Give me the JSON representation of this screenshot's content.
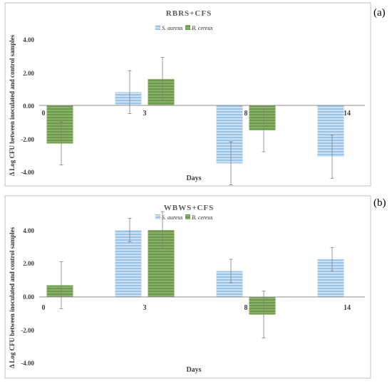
{
  "colors": {
    "s_aureus": "#9dc3e6",
    "s_aureus_stripe": "#ffffff",
    "b_cereus": "#6e9a4c",
    "b_cereus_stripe": "#a9c48f",
    "error_bar": "#7f7f7f",
    "axis": "#8c8c8c",
    "frame": "#bfbfbf"
  },
  "chart_data": [
    {
      "panel_label": "(a)",
      "type": "bar",
      "title": "RBRS+CFS",
      "xlabel": "Days",
      "ylabel": "Δ Log CFU between inoculated and control samples",
      "categories": [
        "0",
        "3",
        "8",
        "14"
      ],
      "y_ticks": [
        "4.00",
        "2.00",
        "0.00",
        "-2.00",
        "-4.00"
      ],
      "ylim": [
        -4,
        4
      ],
      "legend": "top",
      "grid": false,
      "series": [
        {
          "name": "S. aureus",
          "values": [
            null,
            0.8,
            -3.5,
            -3.1
          ],
          "errors": [
            null,
            1.3,
            1.3,
            1.3
          ]
        },
        {
          "name": "B. cereus",
          "values": [
            -2.3,
            1.6,
            -1.5,
            null
          ],
          "errors": [
            1.3,
            1.3,
            1.3,
            null
          ]
        }
      ]
    },
    {
      "panel_label": "(b)",
      "type": "bar",
      "title": "WBWS+CFS",
      "xlabel": "Days",
      "ylabel": "Δ Log CFU between inoculated and control samples",
      "categories": [
        "0",
        "3",
        "8",
        "14"
      ],
      "y_ticks": [
        "4.00",
        "2.00",
        "0.00",
        "-2.00",
        "-4.00"
      ],
      "ylim": [
        -4,
        4
      ],
      "legend": "top",
      "grid": false,
      "series": [
        {
          "name": "S. aureus",
          "values": [
            null,
            4.0,
            1.55,
            2.25
          ],
          "errors": [
            null,
            0.7,
            0.7,
            0.7
          ]
        },
        {
          "name": "B. cereus",
          "values": [
            0.7,
            4.0,
            -1.05,
            null
          ],
          "errors": [
            1.4,
            1.1,
            1.4,
            null
          ]
        }
      ]
    }
  ]
}
